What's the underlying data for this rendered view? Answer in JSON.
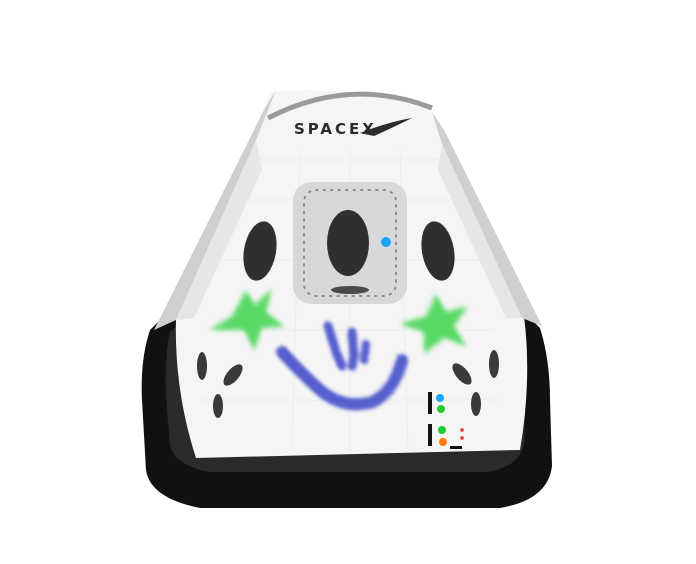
{
  "logo": {
    "text": "SPACEX",
    "color": "#2b2b2b"
  },
  "colors": {
    "hull": "#f5f5f5",
    "panel": "#dcdcdc",
    "heat_shield": "#111111",
    "window": "#2f2f2f",
    "spray_green": "#3ed44e",
    "spray_blue": "#3a45c8",
    "dot_blue": "#1aa3ff",
    "dot_green": "#22cc33",
    "dot_orange": "#ff7a00",
    "dot_red": "#e0333a"
  },
  "decorations": {
    "left_star": "green-star-paint",
    "right_star": "green-star-paint",
    "smile": "blue-smile-paint",
    "hatch": "docking-hatch",
    "indicator_lights": "status-light-panel"
  }
}
